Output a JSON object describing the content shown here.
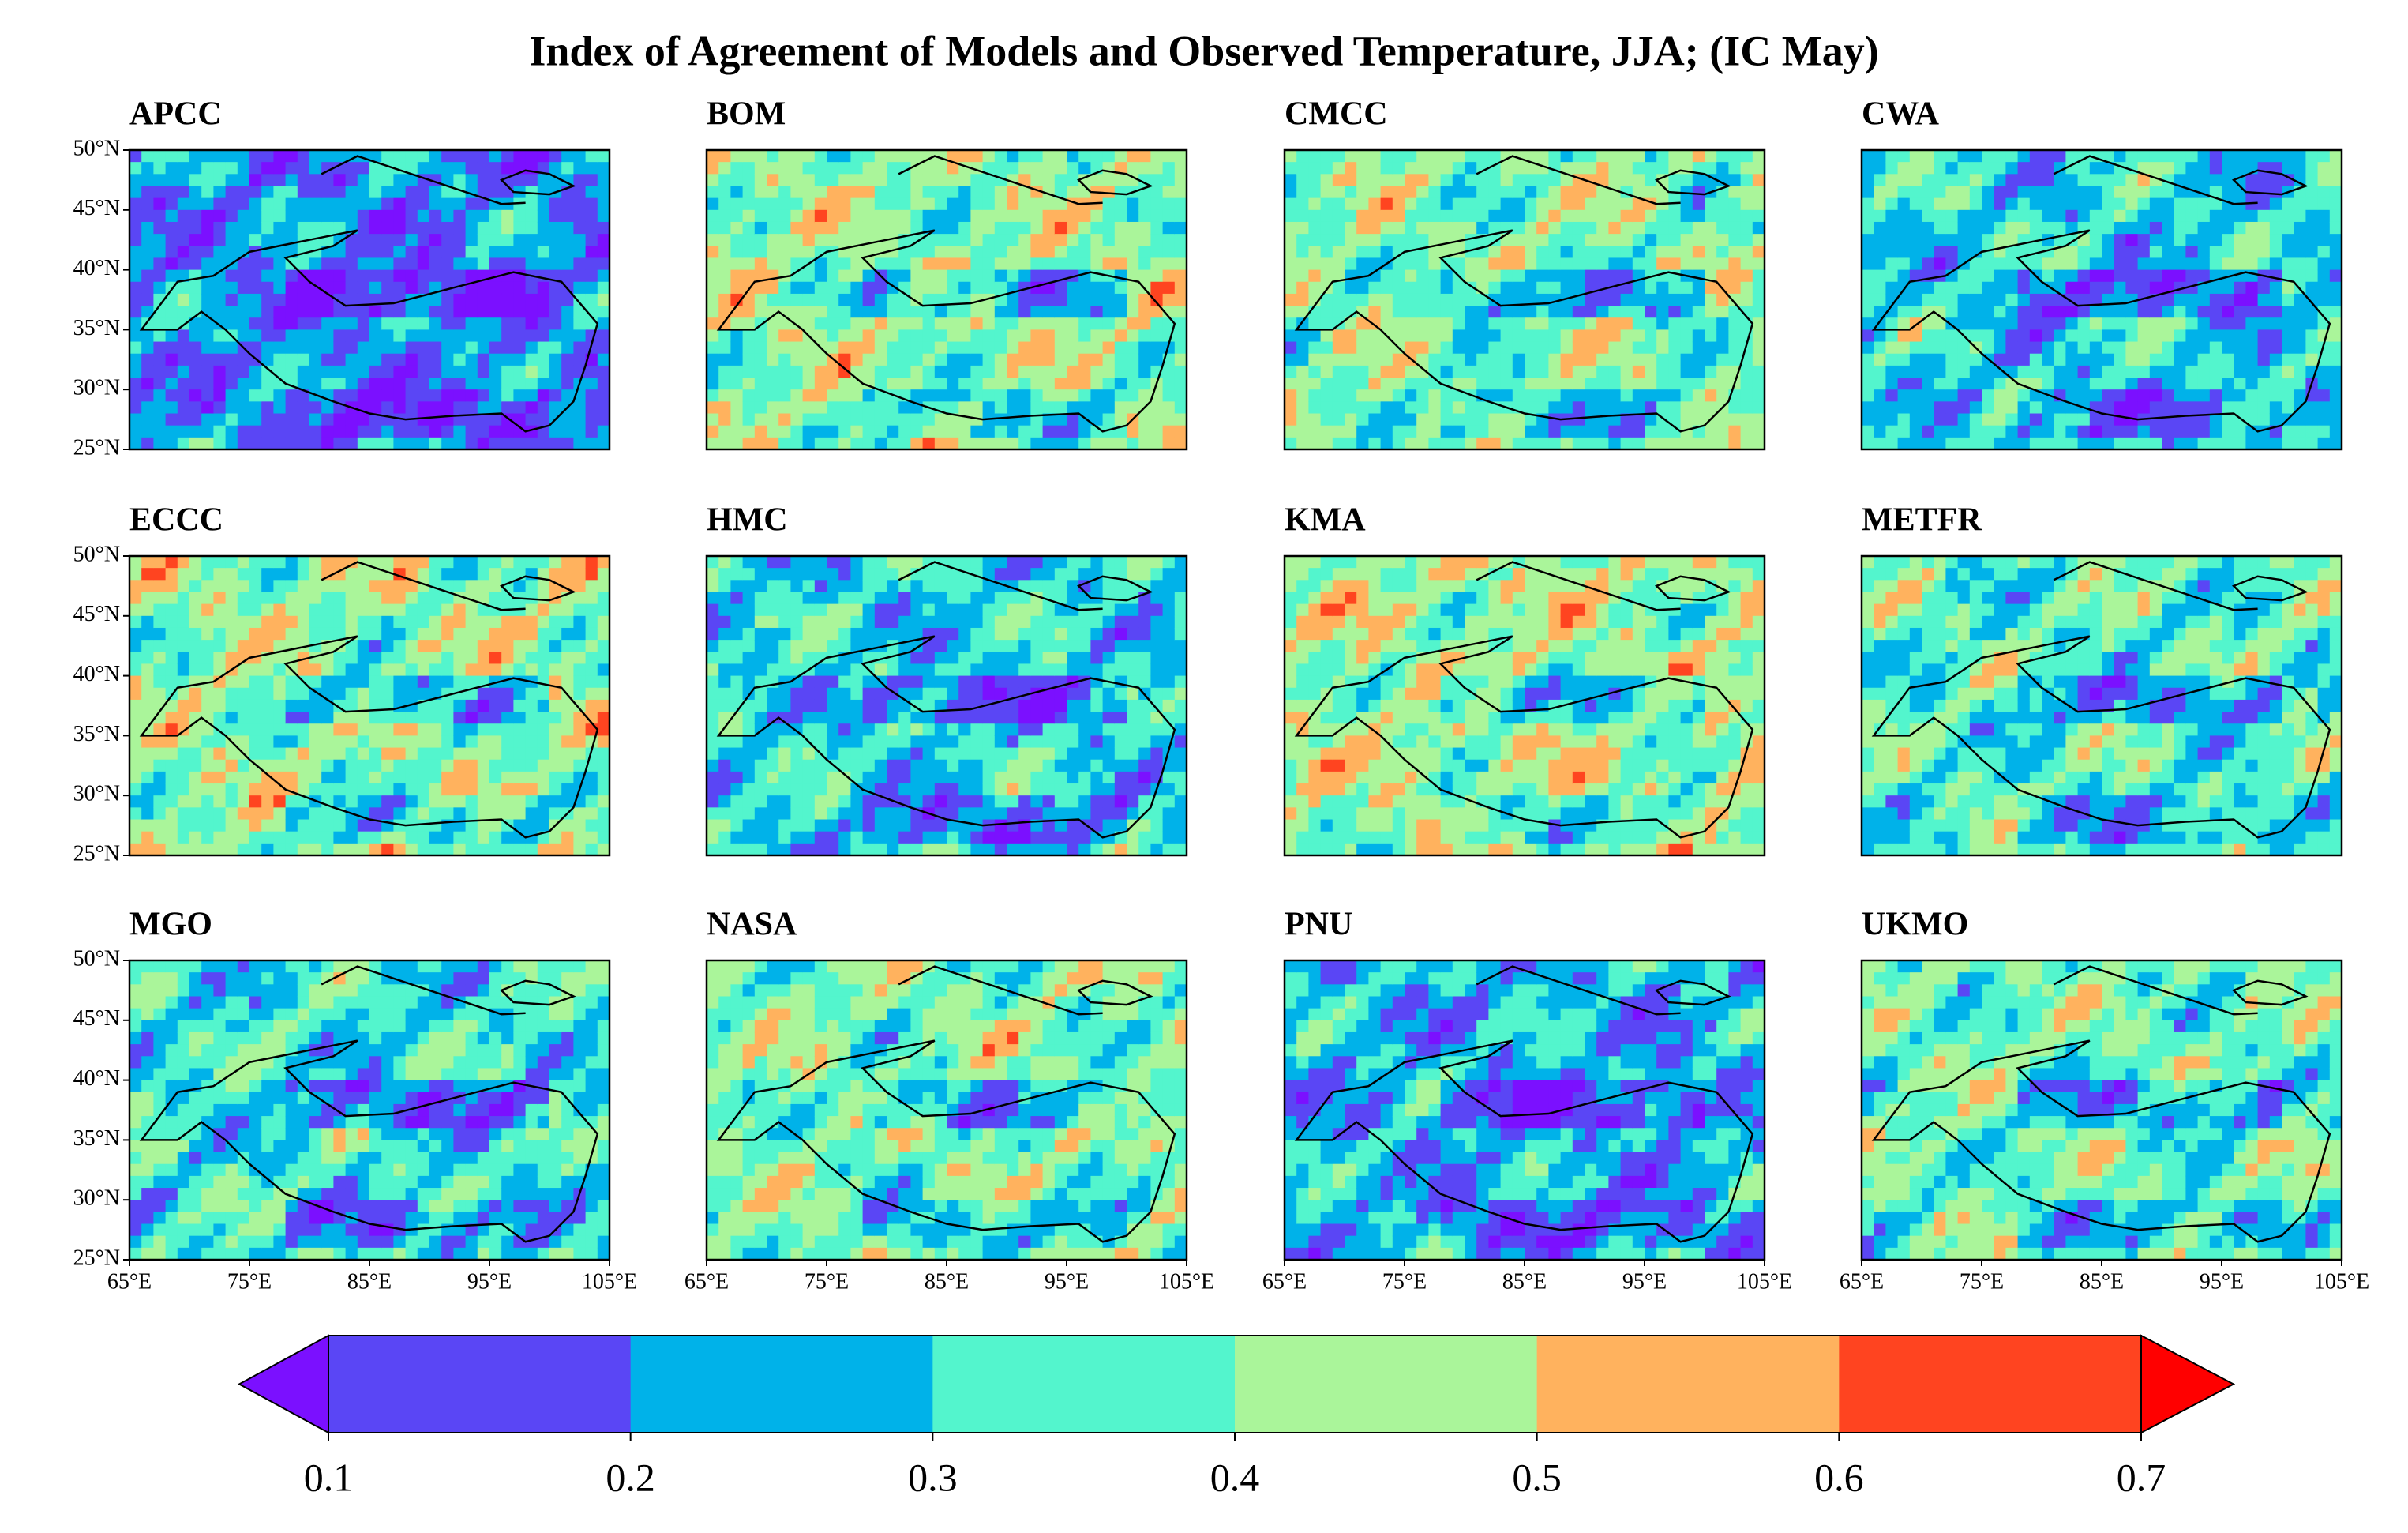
{
  "title": "Index of Agreement of Models and Observed Temperature, JJA;  (IC  May)",
  "panels": [
    {
      "name": "APCC"
    },
    {
      "name": "BOM"
    },
    {
      "name": "CMCC"
    },
    {
      "name": "CWA"
    },
    {
      "name": "ECCC"
    },
    {
      "name": "HMC"
    },
    {
      "name": "KMA"
    },
    {
      "name": "METFR"
    },
    {
      "name": "MGO"
    },
    {
      "name": "NASA"
    },
    {
      "name": "PNU"
    },
    {
      "name": "UKMO"
    }
  ],
  "lat_ticks": [
    {
      "value": 25,
      "label": "25°N"
    },
    {
      "value": 30,
      "label": "30°N"
    },
    {
      "value": 35,
      "label": "35°N"
    },
    {
      "value": 40,
      "label": "40°N"
    },
    {
      "value": 45,
      "label": "45°N"
    },
    {
      "value": 50,
      "label": "50°N"
    }
  ],
  "lon_ticks": [
    {
      "value": 65,
      "label": "65°E"
    },
    {
      "value": 75,
      "label": "75°E"
    },
    {
      "value": 85,
      "label": "85°E"
    },
    {
      "value": 95,
      "label": "95°E"
    },
    {
      "value": 105,
      "label": "105°E"
    }
  ],
  "lat_range": [
    25,
    50
  ],
  "lon_range": [
    65,
    105
  ],
  "colorbar": {
    "levels": [
      0.1,
      0.2,
      0.3,
      0.4,
      0.5,
      0.6,
      0.7
    ],
    "colors": [
      "#7b10ff",
      "#5a46f5",
      "#00b2e9",
      "#53f5cd",
      "#aaf59a",
      "#ffb25e",
      "#ff4420",
      "#ff0000"
    ]
  }
}
